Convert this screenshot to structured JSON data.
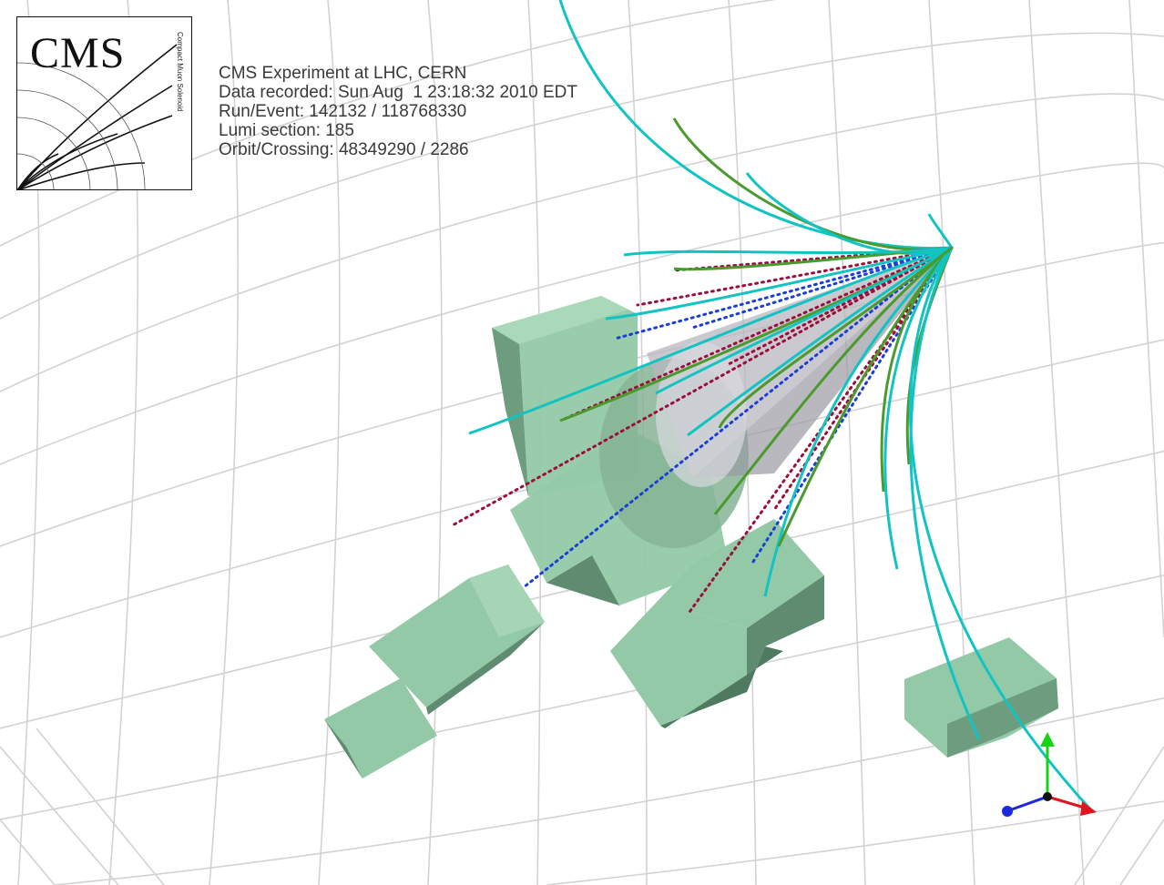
{
  "logo": {
    "title": "CMS",
    "subtitle": "Compact Muon Solenoid"
  },
  "event_info": {
    "experiment": "CMS Experiment at LHC, CERN",
    "data_recorded": "Data recorded: Sun Aug  1 23:18:32 2010 EDT",
    "run_event": "Run/Event: 142132 / 118768330",
    "lumi_section": "Lumi section: 185",
    "orbit_crossing": "Orbit/Crossing: 48349290 / 2286"
  },
  "colors": {
    "background": "#ffffff",
    "grid": "#d2d2d2",
    "detector_box": "#93c9a6",
    "detector_shadow": "#5f8b70",
    "track_cyan": "#12c3c3",
    "track_green": "#4a9a2e",
    "jet_dotted_red": "#9b0f3c",
    "jet_dotted_blue": "#1b3fd6",
    "cone_gray": "#b7b7bf",
    "axis_x": "#e0141e",
    "axis_y": "#16d316",
    "axis_z": "#1b2bdc"
  }
}
